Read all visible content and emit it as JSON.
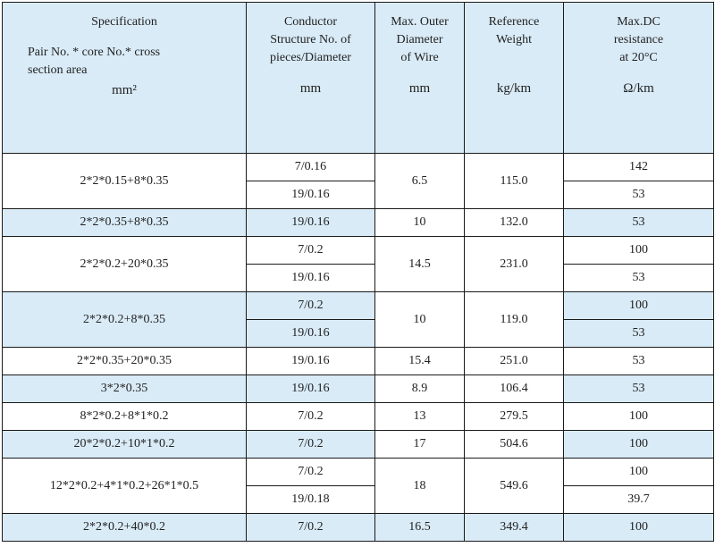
{
  "header": {
    "specification": {
      "title": "Specification",
      "sub_line1": "Pair No. *  core No.* cross",
      "sub_line2": "section area",
      "unit": "mm²"
    },
    "conductor": {
      "line1": "Conductor",
      "line2": "Structure No. of",
      "line3": "pieces/Diameter",
      "unit": "mm"
    },
    "outer_diameter": {
      "line1": "Max. Outer",
      "line2": "Diameter",
      "line3": "of Wire",
      "unit": "mm"
    },
    "weight": {
      "line1": "Reference",
      "line2": "Weight",
      "unit": "kg/km"
    },
    "resistance": {
      "line1": "Max.DC",
      "line2": "resistance",
      "line3": "at 20°C",
      "unit": "Ω/km"
    }
  },
  "rows": [
    {
      "spec": "2*2*0.15+8*0.35",
      "conductors": [
        "7/0.16",
        "19/0.16"
      ],
      "diameter": "6.5",
      "weight": "115.0",
      "resistance": [
        "142",
        "53"
      ]
    },
    {
      "spec": "2*2*0.35+8*0.35",
      "conductors": [
        "19/0.16"
      ],
      "diameter": "10",
      "weight": "132.0",
      "resistance": [
        "53"
      ]
    },
    {
      "spec": "2*2*0.2+20*0.35",
      "conductors": [
        "7/0.2",
        "19/0.16"
      ],
      "diameter": "14.5",
      "weight": "231.0",
      "resistance": [
        "100",
        "53"
      ]
    },
    {
      "spec": "2*2*0.2+8*0.35",
      "conductors": [
        "7/0.2",
        "19/0.16"
      ],
      "diameter": "10",
      "weight": "119.0",
      "resistance": [
        "100",
        "53"
      ]
    },
    {
      "spec": "2*2*0.35+20*0.35",
      "conductors": [
        "19/0.16"
      ],
      "diameter": "15.4",
      "weight": "251.0",
      "resistance": [
        "53"
      ]
    },
    {
      "spec": "3*2*0.35",
      "conductors": [
        "19/0.16"
      ],
      "diameter": "8.9",
      "weight": "106.4",
      "resistance": [
        "53"
      ]
    },
    {
      "spec": "8*2*0.2+8*1*0.2",
      "conductors": [
        "7/0.2"
      ],
      "diameter": "13",
      "weight": "279.5",
      "resistance": [
        "100"
      ]
    },
    {
      "spec": "20*2*0.2+10*1*0.2",
      "conductors": [
        "7/0.2"
      ],
      "diameter": "17",
      "weight": "504.6",
      "resistance": [
        "100"
      ]
    },
    {
      "spec": "12*2*0.2+4*1*0.2+26*1*0.5",
      "conductors": [
        "7/0.2",
        "19/0.18"
      ],
      "diameter": "18",
      "weight": "549.6",
      "resistance": [
        "100",
        "39.7"
      ]
    },
    {
      "spec": "2*2*0.2+40*0.2",
      "conductors": [
        "7/0.2"
      ],
      "diameter": "16.5",
      "weight": "349.4",
      "resistance": [
        "100"
      ]
    }
  ],
  "colors": {
    "header_bg": "#d9ebf7",
    "band_bg": "#d9ebf7",
    "row_bg": "#ffffff",
    "border": "#1a1a1a"
  }
}
